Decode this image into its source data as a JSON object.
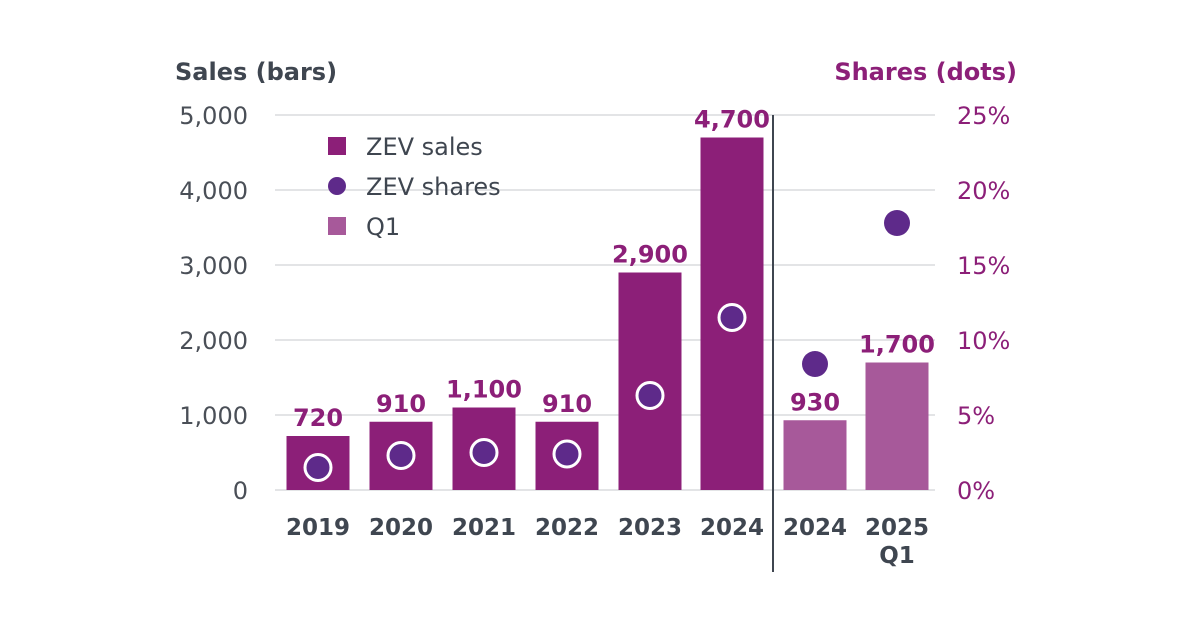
{
  "chart_data": {
    "type": "bar",
    "title": "",
    "ylabel_left": "Sales (bars)",
    "ylabel_right": "Shares (dots)",
    "categories": [
      "2019",
      "2020",
      "2021",
      "2022",
      "2023",
      "2024",
      "2024",
      "2025"
    ],
    "category_sublabels": [
      "",
      "",
      "",
      "",
      "",
      "",
      "",
      "Q1"
    ],
    "period_group": [
      "annual",
      "annual",
      "annual",
      "annual",
      "annual",
      "annual",
      "q1",
      "q1"
    ],
    "left_axis": {
      "min": 0,
      "max": 5000,
      "ticks": [
        0,
        1000,
        2000,
        3000,
        4000,
        5000
      ],
      "tick_labels": [
        "0",
        "1,000",
        "2,000",
        "3,000",
        "4,000",
        "5,000"
      ]
    },
    "right_axis": {
      "min": 0,
      "max": 25,
      "unit": "%",
      "ticks": [
        0,
        5,
        10,
        15,
        20,
        25
      ],
      "tick_labels": [
        "0%",
        "5%",
        "10%",
        "15%",
        "20%",
        "25%"
      ]
    },
    "grid": true,
    "series": [
      {
        "name": "ZEV sales",
        "kind": "bar",
        "axis": "left",
        "values": [
          720,
          910,
          1100,
          910,
          2900,
          4700,
          930,
          1700
        ],
        "labels": [
          "720",
          "910",
          "1,100",
          "910",
          "2,900",
          "4,700",
          "930",
          "1,700"
        ]
      },
      {
        "name": "ZEV shares",
        "kind": "dot",
        "axis": "right",
        "values": [
          1.5,
          2.3,
          2.5,
          2.4,
          6.3,
          11.5,
          8.4,
          17.8
        ]
      }
    ],
    "legend": {
      "position": "top-left",
      "entries": [
        {
          "label": "ZEV sales",
          "shape": "square",
          "color": "#8c1f78"
        },
        {
          "label": "ZEV shares",
          "shape": "circle",
          "color": "#5e2a8a"
        },
        {
          "label": "Q1",
          "shape": "square",
          "color": "#a7599a"
        }
      ]
    },
    "colors": {
      "annual_bar": "#8c1f78",
      "q1_bar": "#a7599a",
      "dot": "#5e2a8a",
      "dot_outline": "#ffffff",
      "label": "#8c1f78",
      "grid": "#c7c9cc",
      "divider": "#3f4650",
      "axis_text": "#4a4f57",
      "right_axis_text": "#8c1f78"
    }
  }
}
